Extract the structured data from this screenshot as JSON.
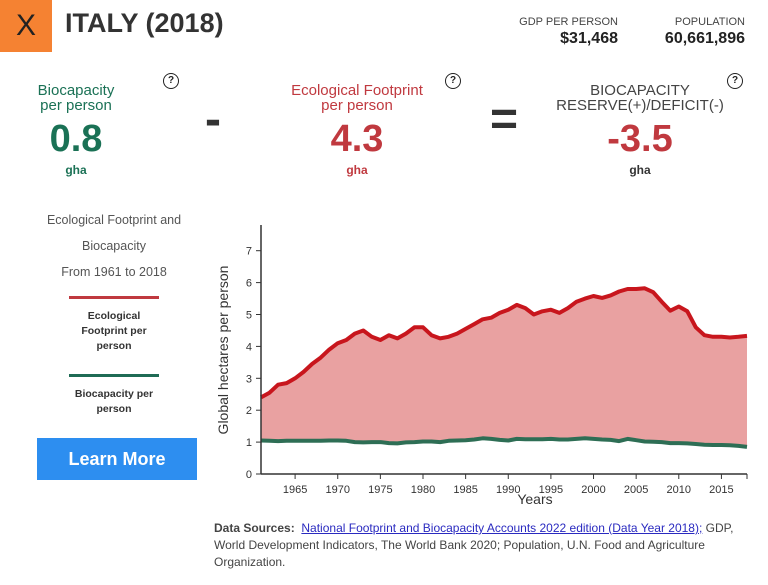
{
  "header": {
    "close_label": "X",
    "title": "ITALY (2018)",
    "gdp_label": "GDP PER PERSON",
    "gdp_value": "$31,468",
    "pop_label": "POPULATION",
    "pop_value": "60,661,896"
  },
  "metrics": {
    "biocapacity": {
      "label1": "Biocapacity",
      "label2": "per person",
      "value": "0.8",
      "unit": "gha",
      "color": "#1a7155"
    },
    "footprint": {
      "label1": "Ecological Footprint",
      "label2": "per person",
      "value": "4.3",
      "unit": "gha",
      "color": "#c0393f"
    },
    "reserve": {
      "label1": "BIOCAPACITY",
      "label2": "RESERVE(+)/DEFICIT(-)",
      "value": "-3.5",
      "unit": "gha",
      "color": "#c0393f"
    },
    "help": "?",
    "minus": "-",
    "equals": "="
  },
  "side": {
    "title1": "Ecological Footprint and",
    "title2": "Biocapacity",
    "title3": "From 1961 to 2018",
    "legend_footprint": "Ecological Footprint per person",
    "legend_bio": "Biocapacity per person",
    "learn_more": "Learn More"
  },
  "sources": {
    "label": "Data Sources:",
    "link": "National Footprint and Biocapacity Accounts 2022 edition (Data Year 2018);",
    "rest": "GDP, World Development Indicators, The World Bank 2020; Population, U.N. Food and Agriculture Organization."
  },
  "chart_data": {
    "type": "area",
    "xlabel": "Years",
    "ylabel": "Global hectares per person",
    "xlim": [
      1961,
      2018
    ],
    "ylim": [
      0,
      7
    ],
    "xticks": [
      1965,
      1970,
      1975,
      1980,
      1985,
      1990,
      1995,
      2000,
      2005,
      2010,
      2015
    ],
    "yticks": [
      0,
      1,
      2,
      3,
      4,
      5,
      6,
      7
    ],
    "colors": {
      "footprint": "#c8161d",
      "biocapacity": "#2e6e55",
      "deficit_fill": "#e9a1a1"
    },
    "x": [
      1961,
      1962,
      1963,
      1964,
      1965,
      1966,
      1967,
      1968,
      1969,
      1970,
      1971,
      1972,
      1973,
      1974,
      1975,
      1976,
      1977,
      1978,
      1979,
      1980,
      1981,
      1982,
      1983,
      1984,
      1985,
      1986,
      1987,
      1988,
      1989,
      1990,
      1991,
      1992,
      1993,
      1994,
      1995,
      1996,
      1997,
      1998,
      1999,
      2000,
      2001,
      2002,
      2003,
      2004,
      2005,
      2006,
      2007,
      2008,
      2009,
      2010,
      2011,
      2012,
      2013,
      2014,
      2015,
      2016,
      2017,
      2018
    ],
    "series": [
      {
        "name": "Ecological Footprint per person",
        "values": [
          2.4,
          2.55,
          2.8,
          2.85,
          3.0,
          3.2,
          3.45,
          3.65,
          3.9,
          4.1,
          4.2,
          4.4,
          4.5,
          4.3,
          4.2,
          4.35,
          4.25,
          4.4,
          4.6,
          4.6,
          4.35,
          4.25,
          4.3,
          4.4,
          4.55,
          4.7,
          4.85,
          4.9,
          5.05,
          5.15,
          5.3,
          5.2,
          5.0,
          5.1,
          5.15,
          5.05,
          5.2,
          5.4,
          5.5,
          5.58,
          5.52,
          5.6,
          5.72,
          5.8,
          5.8,
          5.82,
          5.7,
          5.4,
          5.12,
          5.25,
          5.1,
          4.6,
          4.35,
          4.3,
          4.3,
          4.28,
          4.3,
          4.33
        ]
      },
      {
        "name": "Biocapacity per person",
        "values": [
          1.05,
          1.04,
          1.03,
          1.04,
          1.04,
          1.04,
          1.04,
          1.04,
          1.05,
          1.05,
          1.04,
          1.0,
          0.99,
          1.0,
          1.0,
          0.97,
          0.96,
          0.99,
          1.0,
          1.02,
          1.02,
          1.0,
          1.04,
          1.05,
          1.06,
          1.08,
          1.12,
          1.1,
          1.07,
          1.05,
          1.1,
          1.09,
          1.09,
          1.09,
          1.1,
          1.08,
          1.08,
          1.1,
          1.12,
          1.1,
          1.08,
          1.07,
          1.03,
          1.1,
          1.06,
          1.02,
          1.01,
          1.0,
          0.97,
          0.97,
          0.96,
          0.94,
          0.92,
          0.91,
          0.91,
          0.9,
          0.88,
          0.85
        ]
      }
    ]
  }
}
